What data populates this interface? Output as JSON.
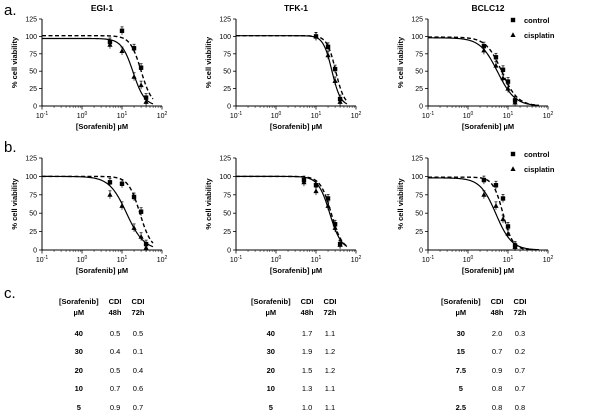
{
  "panel_letters": [
    "a.",
    "b.",
    "c."
  ],
  "axis": {
    "ylabel": "% cell viability",
    "xlabel": "[Sorafenib] µM",
    "yticks": [
      "0",
      "25",
      "50",
      "75",
      "100",
      "125"
    ],
    "xtick_base": "10",
    "xtick_exps": [
      "-1",
      "0",
      "1",
      "2"
    ],
    "ylim": [
      0,
      125
    ],
    "xlim_log10": [
      -1,
      2
    ]
  },
  "legend": {
    "control": "control",
    "cisplatin": "cisplatin"
  },
  "styles": {
    "control_dash": "dashed",
    "cisplatin_dash": "solid",
    "line_color": "#000000"
  },
  "chart_data": [
    {
      "panel": "a",
      "type": "scatter",
      "title": "EGI-1",
      "series": [
        {
          "name": "control",
          "x": [
            5,
            10,
            20,
            30,
            40
          ],
          "y": [
            92,
            108,
            83,
            55,
            12
          ],
          "ic50": 30,
          "hill": 3.2,
          "top": 101
        },
        {
          "name": "cisplatin",
          "x": [
            5,
            10,
            20,
            30,
            40
          ],
          "y": [
            88,
            79,
            42,
            30,
            6
          ],
          "ic50": 19,
          "hill": 3.0,
          "top": 97
        }
      ]
    },
    {
      "panel": "a",
      "type": "scatter",
      "title": "TFK-1",
      "series": [
        {
          "name": "control",
          "x": [
            10,
            20,
            30,
            40
          ],
          "y": [
            100,
            85,
            53,
            10
          ],
          "ic50": 31,
          "hill": 4.0,
          "top": 101
        },
        {
          "name": "cisplatin",
          "x": [
            10,
            20,
            30,
            40
          ],
          "y": [
            100,
            73,
            36,
            6
          ],
          "ic50": 25,
          "hill": 4.0,
          "top": 101
        }
      ]
    },
    {
      "panel": "a",
      "type": "scatter",
      "title": "BCLC12",
      "series": [
        {
          "name": "control",
          "x": [
            2.5,
            5,
            7.5,
            10,
            15
          ],
          "y": [
            86,
            70,
            52,
            35,
            8
          ],
          "ic50": 7.0,
          "hill": 2.2,
          "top": 99
        },
        {
          "name": "cisplatin",
          "x": [
            2.5,
            5,
            7.5,
            10,
            15
          ],
          "y": [
            80,
            58,
            40,
            25,
            5
          ],
          "ic50": 5.5,
          "hill": 2.0,
          "top": 98
        }
      ]
    },
    {
      "panel": "b",
      "type": "scatter",
      "title": "",
      "series": [
        {
          "name": "control",
          "x": [
            5,
            10,
            20,
            30,
            40
          ],
          "y": [
            92,
            90,
            72,
            52,
            8
          ],
          "ic50": 28,
          "hill": 3.0,
          "top": 100
        },
        {
          "name": "cisplatin",
          "x": [
            5,
            10,
            20,
            30,
            40
          ],
          "y": [
            75,
            60,
            30,
            18,
            3
          ],
          "ic50": 13,
          "hill": 2.0,
          "top": 100
        }
      ]
    },
    {
      "panel": "b",
      "type": "scatter",
      "title": "",
      "series": [
        {
          "name": "control",
          "x": [
            5,
            10,
            20,
            30,
            40
          ],
          "y": [
            95,
            88,
            70,
            35,
            8
          ],
          "ic50": 24,
          "hill": 3.2,
          "top": 100
        },
        {
          "name": "cisplatin",
          "x": [
            5,
            10,
            20,
            30,
            40
          ],
          "y": [
            92,
            80,
            60,
            30,
            7
          ],
          "ic50": 22,
          "hill": 3.0,
          "top": 100
        }
      ]
    },
    {
      "panel": "b",
      "type": "scatter",
      "title": "",
      "series": [
        {
          "name": "control",
          "x": [
            2.5,
            5,
            7.5,
            10,
            15
          ],
          "y": [
            95,
            88,
            70,
            32,
            6
          ],
          "ic50": 7.5,
          "hill": 3.5,
          "top": 99
        },
        {
          "name": "cisplatin",
          "x": [
            2.5,
            5,
            7.5,
            10,
            15
          ],
          "y": [
            75,
            60,
            42,
            22,
            4
          ],
          "ic50": 5.0,
          "hill": 2.2,
          "top": 98
        }
      ]
    }
  ],
  "tables": [
    {
      "h1": [
        "[Sorafenib]",
        "CDI",
        "CDI"
      ],
      "h2": [
        "µM",
        "48h",
        "72h"
      ],
      "rows": [
        [
          "40",
          "0.5",
          "0.5"
        ],
        [
          "30",
          "0.4",
          "0.1"
        ],
        [
          "20",
          "0.5",
          "0.4"
        ],
        [
          "10",
          "0.7",
          "0.6"
        ],
        [
          "5",
          "0.9",
          "0.7"
        ]
      ]
    },
    {
      "h1": [
        "[Sorafenib]",
        "CDI",
        "CDI"
      ],
      "h2": [
        "µM",
        "48h",
        "72h"
      ],
      "rows": [
        [
          "40",
          "1.7",
          "1.1"
        ],
        [
          "30",
          "1.9",
          "1.2"
        ],
        [
          "20",
          "1.5",
          "1.2"
        ],
        [
          "10",
          "1.3",
          "1.1"
        ],
        [
          "5",
          "1.0",
          "1.1"
        ]
      ]
    },
    {
      "h1": [
        "[Sorafenib]",
        "CDI",
        "CDI"
      ],
      "h2": [
        "µM",
        "48h",
        "72h"
      ],
      "rows": [
        [
          "30",
          "2.0",
          "0.3"
        ],
        [
          "15",
          "0.7",
          "0.2"
        ],
        [
          "7.5",
          "0.9",
          "0.7"
        ],
        [
          "5",
          "0.8",
          "0.7"
        ],
        [
          "2.5",
          "0.8",
          "0.8"
        ]
      ]
    }
  ]
}
